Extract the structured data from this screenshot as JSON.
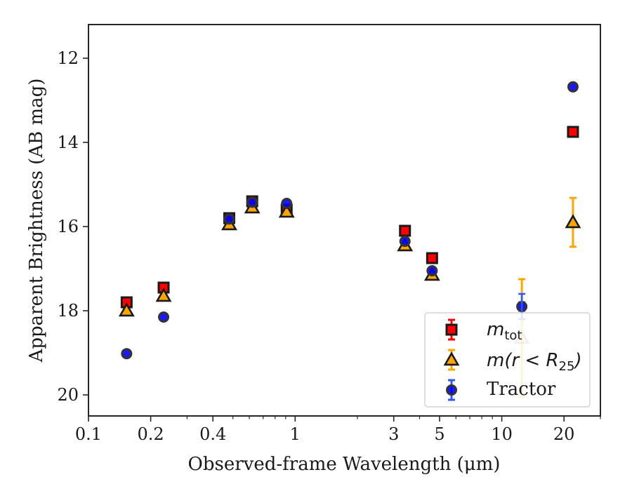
{
  "chart_data": {
    "type": "scatter",
    "title": "",
    "xlabel": "Observed-frame Wavelength (μm)",
    "ylabel": "Apparent Brightness (AB mag)",
    "xscale": "log",
    "xlim": [
      0.1,
      30
    ],
    "ylim": [
      20.5,
      11.2
    ],
    "y_inverted": true,
    "xticks": [
      0.1,
      0.2,
      0.4,
      1,
      3,
      5,
      10,
      20
    ],
    "xtick_labels": [
      "0.1",
      "0.2",
      "0.4",
      "1",
      "3",
      "5",
      "10",
      "20"
    ],
    "yticks": [
      12,
      14,
      16,
      18,
      20
    ],
    "ytick_labels": [
      "12",
      "14",
      "16",
      "18",
      "20"
    ],
    "grid": false,
    "legend_position": "lower-right",
    "series": [
      {
        "name": "m_tot",
        "legend_main": "m",
        "legend_sub": "tot",
        "marker": "square",
        "color": "#ff0000",
        "edge_color": "#1a1a1a",
        "points": [
          {
            "x": 0.153,
            "y": 17.8,
            "err": 0.05
          },
          {
            "x": 0.231,
            "y": 17.45,
            "err": 0.05
          },
          {
            "x": 0.48,
            "y": 15.8,
            "err": 0.04
          },
          {
            "x": 0.62,
            "y": 15.4,
            "err": 0.04
          },
          {
            "x": 0.91,
            "y": 15.6,
            "err": 0.04
          },
          {
            "x": 3.4,
            "y": 16.1,
            "err": 0.04
          },
          {
            "x": 4.6,
            "y": 16.75,
            "err": 0.05
          },
          {
            "x": 22.1,
            "y": 13.75,
            "err": 0.05
          }
        ]
      },
      {
        "name": "m(r<R25)",
        "legend_text": "m(r < R",
        "legend_sub": "25",
        "legend_close": ")",
        "marker": "triangle",
        "color": "#ffa500",
        "edge_color": "#1a1a1a",
        "points": [
          {
            "x": 0.153,
            "y": 18.0,
            "err": 0.05
          },
          {
            "x": 0.231,
            "y": 17.65,
            "err": 0.05
          },
          {
            "x": 0.48,
            "y": 15.95,
            "err": 0.04
          },
          {
            "x": 0.62,
            "y": 15.55,
            "err": 0.04
          },
          {
            "x": 0.91,
            "y": 15.65,
            "err": 0.04
          },
          {
            "x": 3.4,
            "y": 16.45,
            "err": 0.05
          },
          {
            "x": 4.6,
            "y": 17.15,
            "err": 0.06
          },
          {
            "x": 12.5,
            "y": 18.65,
            "err": 1.4
          },
          {
            "x": 22.1,
            "y": 15.9,
            "err": 0.58
          }
        ]
      },
      {
        "name": "Tractor",
        "marker": "circle",
        "color": "#0000ff",
        "edge_color": "#333333",
        "points": [
          {
            "x": 0.153,
            "y": 19.02,
            "err": 0.05
          },
          {
            "x": 0.231,
            "y": 18.15,
            "err": 0.05
          },
          {
            "x": 0.48,
            "y": 15.82,
            "err": 0.04
          },
          {
            "x": 0.62,
            "y": 15.42,
            "err": 0.04
          },
          {
            "x": 0.91,
            "y": 15.45,
            "err": 0.04
          },
          {
            "x": 3.4,
            "y": 16.35,
            "err": 0.04
          },
          {
            "x": 4.6,
            "y": 17.05,
            "err": 0.05
          },
          {
            "x": 12.5,
            "y": 17.9,
            "err": 0.1
          },
          {
            "x": 22.1,
            "y": 12.68,
            "err": 0.05
          }
        ]
      }
    ]
  }
}
